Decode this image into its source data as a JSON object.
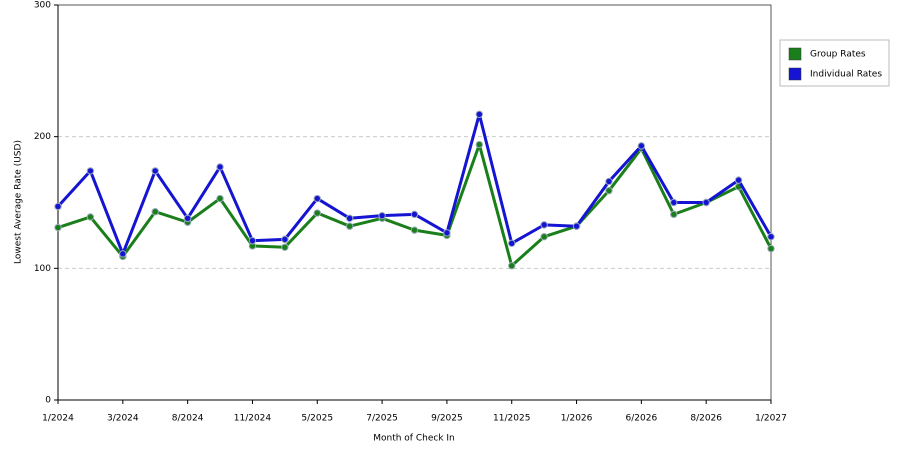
{
  "chart_data": {
    "type": "line",
    "x_label": "Month of Check In",
    "y_label": "Lowest Average Rate (USD)",
    "categories": [
      "1/2024",
      null,
      "3/2024",
      null,
      "8/2024",
      null,
      "11/2024",
      null,
      "5/2025",
      null,
      "7/2025",
      null,
      "9/2025",
      null,
      "11/2025",
      null,
      "1/2026",
      null,
      "6/2026",
      null,
      "8/2026",
      null,
      "1/2027"
    ],
    "series": [
      {
        "name": "Group Rates",
        "color": "#1a7f1a",
        "values": [
          131,
          139,
          109,
          143,
          135,
          153,
          117,
          116,
          142,
          132,
          138,
          129,
          125,
          194,
          102,
          124,
          132,
          159,
          191,
          141,
          150,
          162,
          115
        ]
      },
      {
        "name": "Individual Rates",
        "color": "#1414d2",
        "values": [
          147,
          174,
          111,
          174,
          138,
          177,
          121,
          122,
          153,
          138,
          140,
          141,
          127,
          217,
          119,
          133,
          132,
          166,
          193,
          150,
          150,
          167,
          124
        ]
      }
    ],
    "ylim": [
      0,
      300
    ],
    "yticks": [
      0,
      100,
      200,
      300
    ],
    "grid": true,
    "legend": "right"
  }
}
